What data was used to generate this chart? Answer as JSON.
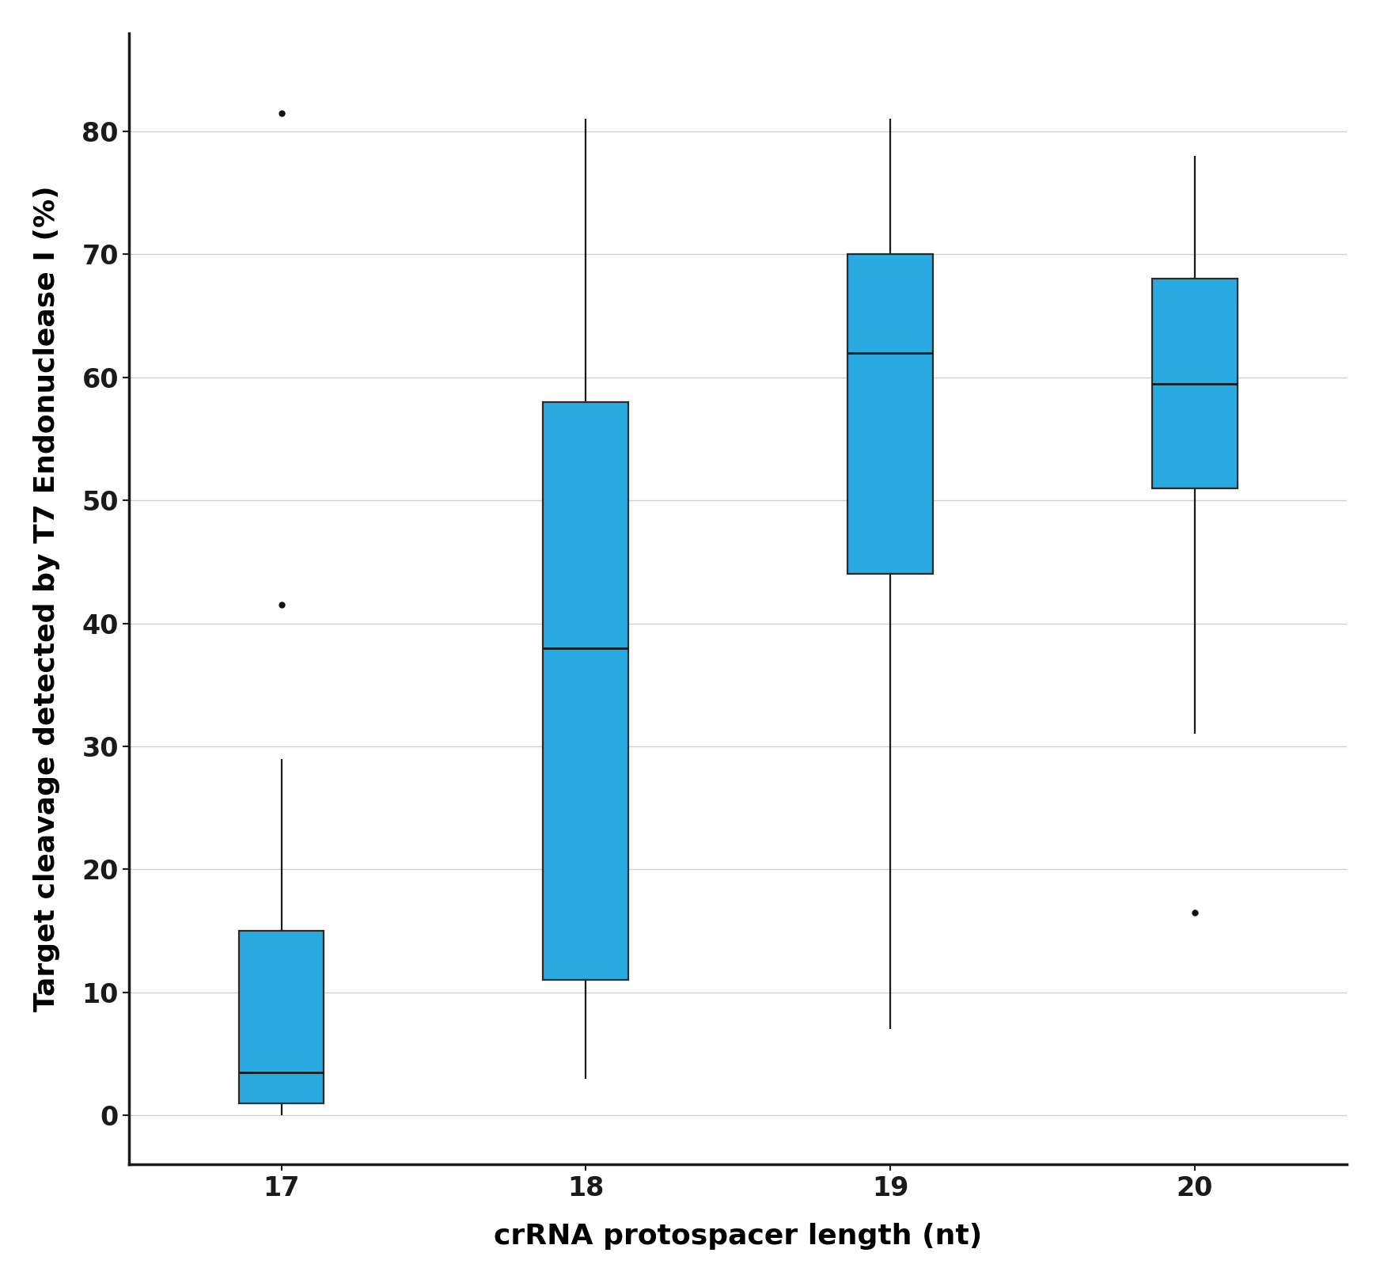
{
  "xlabel": "crRNA protospacer length (nt)",
  "ylabel": "Target cleavage detected by T7 Endonuclease I (%)",
  "categories": [
    17,
    18,
    19,
    20
  ],
  "box_data": {
    "17": {
      "whisker_low": 0,
      "q1": 1.0,
      "median": 3.5,
      "q3": 15.0,
      "whisker_high": 29.0,
      "outliers": [
        41.5,
        81.5
      ]
    },
    "18": {
      "whisker_low": 3.0,
      "q1": 11.0,
      "median": 38.0,
      "q3": 58.0,
      "whisker_high": 81.0,
      "outliers": []
    },
    "19": {
      "whisker_low": 7.0,
      "q1": 44.0,
      "median": 62.0,
      "q3": 70.0,
      "whisker_high": 81.0,
      "outliers": []
    },
    "20": {
      "whisker_low": 31.0,
      "q1": 51.0,
      "median": 59.5,
      "q3": 68.0,
      "whisker_high": 78.0,
      "outliers": [
        16.5
      ]
    }
  },
  "ylim": [
    -4,
    88
  ],
  "yticks": [
    0,
    10,
    20,
    30,
    40,
    50,
    60,
    70,
    80
  ],
  "box_color": "#29ABE2",
  "box_edge_color": "#2a2a2a",
  "whisker_color": "#1a1a1a",
  "median_color": "#1a1a1a",
  "flier_color": "#111111",
  "background_color": "#ffffff",
  "grid_color": "#cccccc",
  "box_width": 0.28,
  "linewidth": 1.6,
  "median_linewidth": 2.0,
  "xlabel_fontsize": 26,
  "ylabel_fontsize": 26,
  "tick_fontsize": 24,
  "spine_linewidth": 2.5,
  "flier_markersize": 6
}
